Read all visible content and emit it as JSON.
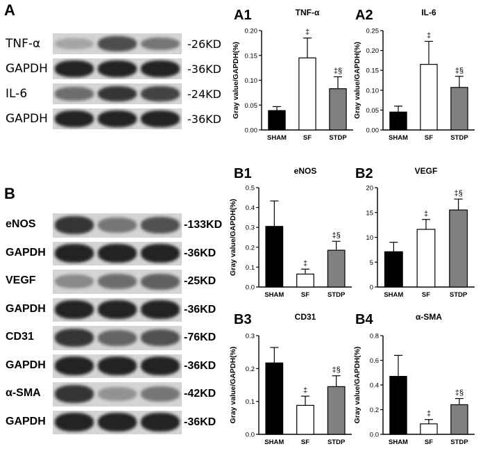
{
  "panelA": {
    "letter": "A",
    "rows": [
      {
        "label": "TNF-α",
        "kd": "-26KD",
        "bands": [
          0.25,
          0.72,
          0.5
        ]
      },
      {
        "label": "GAPDH",
        "kd": "-36KD",
        "bands": [
          0.95,
          0.95,
          0.95
        ]
      },
      {
        "label": "IL-6",
        "kd": "-24KD",
        "bands": [
          0.55,
          0.85,
          0.78
        ]
      },
      {
        "label": "GAPDH",
        "kd": "-36KD",
        "bands": [
          0.95,
          0.95,
          0.95
        ]
      }
    ]
  },
  "panelB": {
    "letter": "B",
    "rows": [
      {
        "label": "eNOS",
        "kd": "-133KD",
        "bands": [
          0.85,
          0.5,
          0.7
        ]
      },
      {
        "label": "GAPDH",
        "kd": "-36KD",
        "bands": [
          0.95,
          0.95,
          0.95
        ]
      },
      {
        "label": "VEGF",
        "kd": "-25KD",
        "bands": [
          0.4,
          0.55,
          0.62
        ]
      },
      {
        "label": "GAPDH",
        "kd": "-36KD",
        "bands": [
          0.95,
          0.95,
          0.95
        ]
      },
      {
        "label": "CD31",
        "kd": "-76KD",
        "bands": [
          0.85,
          0.6,
          0.7
        ]
      },
      {
        "label": "GAPDH",
        "kd": "-36KD",
        "bands": [
          0.95,
          0.95,
          0.95
        ]
      },
      {
        "label": "α-SMA",
        "kd": "-42KD",
        "bands": [
          0.85,
          0.35,
          0.5
        ]
      },
      {
        "label": "GAPDH",
        "kd": "-36KD",
        "bands": [
          0.95,
          0.95,
          0.95
        ]
      }
    ]
  },
  "colors": {
    "sham": "#000000",
    "sf": "#ffffff",
    "stdp": "#808080",
    "blot_bg": "#d4d4d4",
    "band": "#1a1a1a"
  },
  "chart_data": [
    {
      "id": "A1",
      "type": "bar",
      "title": "TNF-α",
      "ylabel": "Gray value/GAPDH(%)",
      "categories": [
        "SHAM",
        "SF",
        "STDP"
      ],
      "values": [
        0.039,
        0.145,
        0.083
      ],
      "errors": [
        0.008,
        0.04,
        0.024
      ],
      "sig": [
        "",
        "‡",
        "‡§"
      ],
      "ylim": [
        0,
        0.2
      ],
      "yticks": [
        "0.00",
        "0.05",
        "0.10",
        "0.15",
        "0.20"
      ]
    },
    {
      "id": "A2",
      "type": "bar",
      "title": "IL-6",
      "ylabel": "Gray value/GAPDH(%)",
      "categories": [
        "SHAM",
        "SF",
        "STDP"
      ],
      "values": [
        0.045,
        0.165,
        0.107
      ],
      "errors": [
        0.015,
        0.058,
        0.028
      ],
      "sig": [
        "",
        "‡",
        "‡§"
      ],
      "ylim": [
        0,
        0.25
      ],
      "yticks": [
        "0.00",
        "0.05",
        "0.10",
        "0.15",
        "0.20",
        "0.25"
      ]
    },
    {
      "id": "B1",
      "type": "bar",
      "title": "eNOS",
      "ylabel": "Gray value/GAPDH(%)",
      "categories": [
        "SHAM",
        "SF",
        "STDP"
      ],
      "values": [
        0.305,
        0.065,
        0.185
      ],
      "errors": [
        0.128,
        0.025,
        0.045
      ],
      "sig": [
        "",
        "‡",
        "‡§"
      ],
      "ylim": [
        0,
        0.5
      ],
      "yticks": [
        "0.0",
        "0.1",
        "0.2",
        "0.3",
        "0.4",
        "0.5"
      ]
    },
    {
      "id": "B2",
      "type": "bar",
      "title": "VEGF",
      "ylabel": "",
      "categories": [
        "SHAM",
        "SF",
        "STDP"
      ],
      "values": [
        7.1,
        11.6,
        15.5
      ],
      "errors": [
        1.9,
        2.0,
        2.2
      ],
      "sig": [
        "",
        "‡",
        "‡§"
      ],
      "ylim": [
        0,
        20
      ],
      "yticks": [
        "0",
        "5",
        "10",
        "15",
        "20"
      ]
    },
    {
      "id": "B3",
      "type": "bar",
      "title": "CD31",
      "ylabel": "Gray value/GAPDH(%)",
      "categories": [
        "SHAM",
        "SF",
        "STDP"
      ],
      "values": [
        0.217,
        0.088,
        0.145
      ],
      "errors": [
        0.047,
        0.028,
        0.033
      ],
      "sig": [
        "",
        "‡",
        "‡§"
      ],
      "ylim": [
        0,
        0.3
      ],
      "yticks": [
        "0.0",
        "0.1",
        "0.2",
        "0.3"
      ]
    },
    {
      "id": "B4",
      "type": "bar",
      "title": "α-SMA",
      "ylabel": "Gray value/GAPDH(%)",
      "categories": [
        "SHAM",
        "SF",
        "STDP"
      ],
      "values": [
        0.47,
        0.085,
        0.24
      ],
      "errors": [
        0.17,
        0.035,
        0.05
      ],
      "sig": [
        "",
        "‡",
        "‡§"
      ],
      "ylim": [
        0,
        0.8
      ],
      "yticks": [
        "0.0",
        "0.2",
        "0.4",
        "0.6",
        "0.8"
      ]
    }
  ]
}
